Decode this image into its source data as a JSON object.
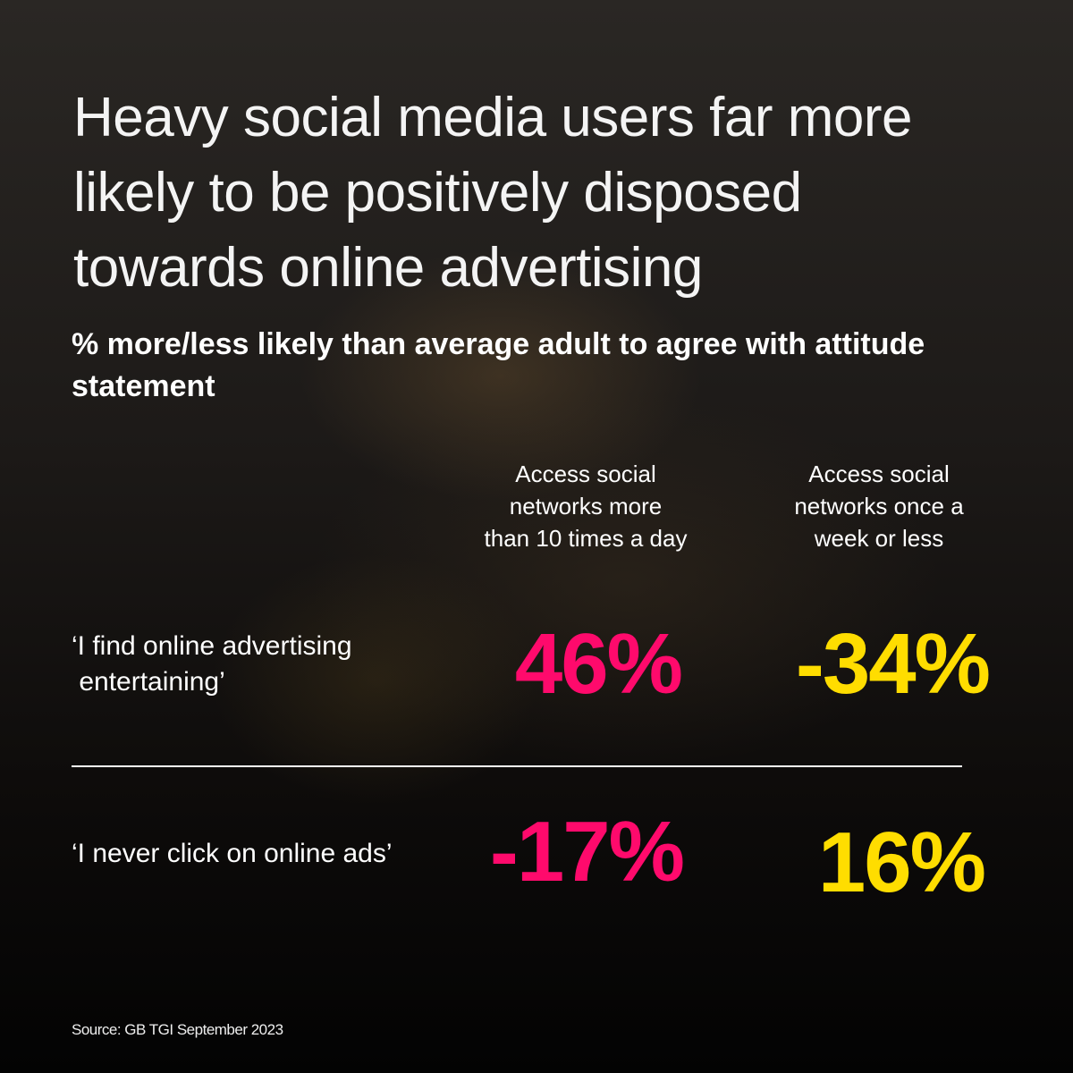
{
  "title_lines": [
    "Heavy social media users far more",
    "likely to be positively disposed",
    "towards online advertising"
  ],
  "subtitle": "% more/less likely than average adult to agree with attitude statement",
  "colors": {
    "group1": "#ff0a6c",
    "group2": "#ffdd00"
  },
  "chart_data": {
    "type": "table",
    "title": "Heavy social media users far more likely to be positively disposed towards online advertising",
    "subtitle": "% more/less likely than average adult to agree with attitude statement",
    "columns": [
      "Access social networks more than 10 times a day",
      "Access social networks once a week or less"
    ],
    "column_lines": [
      [
        "Access social",
        "networks more",
        "than 10 times a day"
      ],
      [
        "Access social",
        "networks once a",
        "week or less"
      ]
    ],
    "rows": [
      {
        "label": "‘I find online advertising entertaining’",
        "label_lines": [
          "‘I find online advertising",
          " entertaining’"
        ],
        "values": [
          46,
          -34
        ],
        "display": [
          "46%",
          "-34%"
        ]
      },
      {
        "label": "‘I never click on online ads’",
        "label_lines": [
          "‘I never click on online ads’"
        ],
        "values": [
          -17,
          16
        ],
        "display": [
          "-17%",
          "16%"
        ]
      }
    ],
    "unit": "%"
  },
  "source": "Source: GB TGI September 2023"
}
